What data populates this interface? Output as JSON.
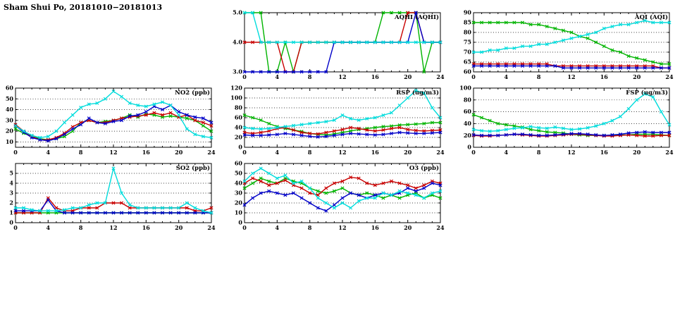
{
  "page_title": "Sham Shui Po, 20181010−20181013",
  "chart_data": [
    {
      "id": "aqhi",
      "title": "AQHI (AQHI)",
      "type": "line",
      "x_unit": "hour",
      "xlim": [
        0,
        24
      ],
      "xticks": [
        0,
        4,
        8,
        12,
        16,
        20,
        24
      ],
      "ylim": [
        3,
        5
      ],
      "yticks": [
        3,
        4,
        5
      ],
      "ytick_labels": [
        "3.0",
        "4.0",
        "5.0"
      ],
      "grid": "horizontal-dotted",
      "marker": "x",
      "legend": "none",
      "series": [
        {
          "name": "green",
          "color": "#00b400",
          "values": [
            5,
            5,
            5,
            3,
            3,
            4,
            3,
            4,
            4,
            4,
            4,
            4,
            4,
            4,
            4,
            4,
            4,
            5,
            5,
            5,
            5,
            5,
            3,
            4,
            4
          ]
        },
        {
          "name": "red",
          "color": "#c80000",
          "values": [
            4,
            4,
            4,
            4,
            4,
            3,
            3,
            4,
            4,
            4,
            4,
            4,
            4,
            4,
            4,
            4,
            4,
            4,
            4,
            4,
            5,
            5,
            4,
            4,
            4
          ]
        },
        {
          "name": "blue",
          "color": "#0000c8",
          "values": [
            3,
            3,
            3,
            3,
            3,
            3,
            3,
            3,
            3,
            3,
            3,
            4,
            4,
            4,
            4,
            4,
            4,
            4,
            4,
            4,
            4,
            5,
            4,
            4,
            4
          ]
        },
        {
          "name": "cyan",
          "color": "#00dcdc",
          "values": [
            5,
            5,
            4,
            4,
            4,
            4,
            4,
            4,
            4,
            4,
            4,
            4,
            4,
            4,
            4,
            4,
            4,
            4,
            4,
            4,
            4,
            4,
            4,
            4,
            4
          ]
        }
      ]
    },
    {
      "id": "aqi",
      "title": "AQI (AQI)",
      "type": "line",
      "x_unit": "hour",
      "xlim": [
        0,
        24
      ],
      "xticks": [
        0,
        4,
        8,
        12,
        16,
        20,
        24
      ],
      "ylim": [
        60,
        90
      ],
      "yticks": [
        60,
        65,
        70,
        75,
        80,
        85,
        90
      ],
      "ytick_labels": [
        "60",
        "65",
        "70",
        "75",
        "80",
        "85",
        "90"
      ],
      "grid": "horizontal-dotted",
      "marker": "x",
      "legend": "none",
      "series": [
        {
          "name": "green",
          "color": "#00b400",
          "values": [
            85,
            85,
            85,
            85,
            85,
            85,
            85,
            84,
            84,
            83,
            82,
            81,
            80,
            78,
            77,
            75,
            73,
            71,
            70,
            68,
            67,
            66,
            65,
            64,
            64
          ]
        },
        {
          "name": "red",
          "color": "#c80000",
          "values": [
            64,
            64,
            64,
            64,
            64,
            64,
            64,
            64,
            64,
            64,
            63,
            63,
            63,
            63,
            63,
            63,
            63,
            63,
            63,
            63,
            63,
            63,
            63,
            62,
            62
          ]
        },
        {
          "name": "blue",
          "color": "#0000c8",
          "values": [
            63,
            63,
            63,
            63,
            63,
            63,
            63,
            63,
            63,
            63,
            63,
            62,
            62,
            62,
            62,
            62,
            62,
            62,
            62,
            62,
            62,
            62,
            62,
            62,
            62
          ]
        },
        {
          "name": "cyan",
          "color": "#00dcdc",
          "values": [
            70,
            70,
            71,
            71,
            72,
            72,
            73,
            73,
            74,
            74,
            75,
            76,
            77,
            78,
            79,
            80,
            82,
            83,
            84,
            84,
            85,
            86,
            85,
            85,
            85
          ]
        }
      ]
    },
    {
      "id": "no2",
      "title": "NO2 (ppb)",
      "type": "line",
      "x_unit": "hour",
      "xlim": [
        0,
        24
      ],
      "xticks": [
        0,
        4,
        8,
        12,
        16,
        20,
        24
      ],
      "ylim": [
        5,
        60
      ],
      "yticks": [
        10,
        20,
        30,
        40,
        50,
        60
      ],
      "ytick_labels": [
        "10",
        "20",
        "30",
        "40",
        "50",
        "60"
      ],
      "grid": "horizontal-dotted",
      "marker": "x",
      "legend": "none",
      "series": [
        {
          "name": "green",
          "color": "#00b400",
          "values": [
            22,
            18,
            15,
            13,
            12,
            13,
            15,
            20,
            28,
            30,
            28,
            29,
            30,
            32,
            35,
            33,
            36,
            35,
            33,
            34,
            33,
            32,
            30,
            25,
            20
          ]
        },
        {
          "name": "red",
          "color": "#c80000",
          "values": [
            26,
            20,
            15,
            12,
            12,
            14,
            18,
            24,
            28,
            30,
            28,
            28,
            30,
            32,
            33,
            34,
            35,
            37,
            35,
            37,
            33,
            35,
            30,
            28,
            25
          ]
        },
        {
          "name": "blue",
          "color": "#0000c8",
          "values": [
            25,
            19,
            14,
            12,
            11,
            13,
            17,
            22,
            26,
            32,
            28,
            27,
            29,
            30,
            34,
            35,
            38,
            43,
            40,
            44,
            38,
            35,
            33,
            32,
            28
          ]
        },
        {
          "name": "cyan",
          "color": "#00dcdc",
          "values": [
            25,
            20,
            16,
            14,
            15,
            20,
            28,
            35,
            42,
            45,
            46,
            50,
            57,
            52,
            46,
            44,
            43,
            45,
            47,
            44,
            35,
            22,
            17,
            15,
            14
          ]
        }
      ]
    },
    {
      "id": "rsp",
      "title": "RSP (ug/m3)",
      "type": "line",
      "x_unit": "hour",
      "xlim": [
        0,
        24
      ],
      "xticks": [
        0,
        4,
        8,
        12,
        16,
        20,
        24
      ],
      "ylim": [
        0,
        120
      ],
      "yticks": [
        0,
        20,
        40,
        60,
        80,
        100,
        120
      ],
      "ytick_labels": [
        "0",
        "20",
        "40",
        "60",
        "80",
        "100",
        "120"
      ],
      "grid": "horizontal-dotted",
      "marker": "x",
      "legend": "none",
      "series": [
        {
          "name": "green",
          "color": "#00b400",
          "values": [
            65,
            60,
            55,
            48,
            42,
            38,
            35,
            32,
            28,
            26,
            25,
            27,
            30,
            33,
            36,
            38,
            40,
            42,
            43,
            45,
            46,
            47,
            48,
            50,
            50
          ]
        },
        {
          "name": "red",
          "color": "#c80000",
          "values": [
            30,
            28,
            30,
            33,
            38,
            40,
            35,
            30,
            28,
            27,
            30,
            33,
            36,
            40,
            38,
            35,
            33,
            35,
            38,
            40,
            36,
            34,
            33,
            34,
            35
          ]
        },
        {
          "name": "blue",
          "color": "#0000c8",
          "values": [
            25,
            24,
            24,
            25,
            26,
            28,
            26,
            24,
            22,
            21,
            22,
            24,
            26,
            28,
            27,
            26,
            25,
            26,
            28,
            30,
            29,
            28,
            28,
            29,
            30
          ]
        },
        {
          "name": "cyan",
          "color": "#00dcdc",
          "values": [
            40,
            38,
            37,
            38,
            40,
            42,
            44,
            46,
            48,
            50,
            52,
            55,
            65,
            58,
            55,
            58,
            60,
            65,
            70,
            85,
            100,
            115,
            110,
            80,
            60
          ]
        }
      ]
    },
    {
      "id": "fsp",
      "title": "FSP (ug/m3)",
      "type": "line",
      "x_unit": "hour",
      "xlim": [
        0,
        24
      ],
      "xticks": [
        0,
        4,
        8,
        12,
        16,
        20,
        24
      ],
      "ylim": [
        0,
        100
      ],
      "yticks": [
        0,
        20,
        40,
        60,
        80,
        100
      ],
      "ytick_labels": [
        "0",
        "20",
        "40",
        "60",
        "80",
        "100"
      ],
      "grid": "horizontal-dotted",
      "marker": "x",
      "legend": "none",
      "series": [
        {
          "name": "green",
          "color": "#00b400",
          "values": [
            55,
            50,
            45,
            40,
            38,
            36,
            34,
            30,
            28,
            26,
            25,
            24,
            22,
            21,
            20,
            20,
            20,
            20,
            21,
            21,
            22,
            22,
            22,
            21,
            20
          ]
        },
        {
          "name": "red",
          "color": "#c80000",
          "values": [
            20,
            19,
            19,
            20,
            21,
            22,
            21,
            20,
            19,
            19,
            20,
            21,
            22,
            22,
            21,
            20,
            19,
            19,
            20,
            21,
            20,
            19,
            19,
            20,
            20
          ]
        },
        {
          "name": "blue",
          "color": "#0000c8",
          "values": [
            21,
            20,
            20,
            20,
            21,
            22,
            22,
            21,
            20,
            20,
            21,
            22,
            23,
            23,
            22,
            21,
            20,
            21,
            22,
            24,
            25,
            26,
            25,
            25,
            25
          ]
        },
        {
          "name": "cyan",
          "color": "#00dcdc",
          "values": [
            30,
            28,
            27,
            28,
            30,
            32,
            33,
            35,
            33,
            32,
            34,
            32,
            30,
            31,
            33,
            36,
            40,
            45,
            52,
            65,
            80,
            90,
            85,
            60,
            38
          ]
        }
      ]
    },
    {
      "id": "so2",
      "title": "SO2 (ppb)",
      "type": "line",
      "x_unit": "hour",
      "xlim": [
        0,
        24
      ],
      "xticks": [
        0,
        4,
        8,
        12,
        16,
        20,
        24
      ],
      "ylim": [
        0,
        6
      ],
      "yticks": [
        0,
        1,
        2,
        3,
        4,
        5
      ],
      "ytick_labels": [
        "0",
        "1",
        "2",
        "3",
        "4",
        "5"
      ],
      "grid": "horizontal-dotted",
      "marker": "x",
      "legend": "none",
      "series": [
        {
          "name": "green",
          "color": "#00b400",
          "values": [
            1,
            1,
            1,
            1,
            1,
            1,
            1,
            1,
            1,
            1,
            1,
            1,
            1,
            1,
            1,
            1,
            1,
            1,
            1,
            1,
            1,
            1,
            1,
            1,
            1
          ]
        },
        {
          "name": "red",
          "color": "#c80000",
          "values": [
            1,
            1,
            1,
            1,
            2.5,
            1.5,
            1.2,
            1.2,
            1.5,
            1.5,
            1.5,
            2,
            2,
            2,
            1.5,
            1.5,
            1.5,
            1.5,
            1.5,
            1.5,
            1.5,
            1.5,
            1.2,
            1.2,
            1.5
          ]
        },
        {
          "name": "blue",
          "color": "#0000c8",
          "values": [
            1.2,
            1.2,
            1.2,
            1.2,
            2.3,
            1.2,
            1,
            1,
            1,
            1,
            1,
            1,
            1,
            1,
            1,
            1,
            1,
            1,
            1,
            1,
            1,
            1,
            1,
            1,
            1
          ]
        },
        {
          "name": "cyan",
          "color": "#00dcdc",
          "values": [
            1.5,
            1.5,
            1.3,
            1.2,
            1.2,
            1.2,
            1.3,
            1.5,
            1.5,
            1.8,
            2,
            2,
            5.5,
            3,
            1.8,
            1.5,
            1.5,
            1.5,
            1.5,
            1.5,
            1.5,
            2,
            1.5,
            1.2,
            1
          ]
        }
      ]
    },
    {
      "id": "o3",
      "title": "O3 (ppb)",
      "type": "line",
      "x_unit": "hour",
      "xlim": [
        0,
        24
      ],
      "xticks": [
        0,
        4,
        8,
        12,
        16,
        20,
        24
      ],
      "ylim": [
        0,
        60
      ],
      "yticks": [
        0,
        10,
        20,
        30,
        40,
        50,
        60
      ],
      "ytick_labels": [
        "0",
        "10",
        "20",
        "30",
        "40",
        "50",
        "60"
      ],
      "grid": "horizontal-dotted",
      "marker": "x",
      "legend": "none",
      "series": [
        {
          "name": "green",
          "color": "#00b400",
          "values": [
            35,
            40,
            45,
            42,
            40,
            45,
            42,
            40,
            35,
            32,
            30,
            32,
            35,
            30,
            28,
            30,
            28,
            25,
            28,
            25,
            28,
            30,
            25,
            28,
            25
          ]
        },
        {
          "name": "red",
          "color": "#c80000",
          "values": [
            40,
            45,
            42,
            38,
            40,
            43,
            38,
            35,
            30,
            28,
            35,
            40,
            42,
            46,
            45,
            40,
            38,
            40,
            42,
            40,
            38,
            35,
            38,
            42,
            40
          ]
        },
        {
          "name": "blue",
          "color": "#0000c8",
          "values": [
            18,
            25,
            30,
            32,
            30,
            28,
            30,
            25,
            20,
            15,
            12,
            18,
            25,
            30,
            28,
            25,
            28,
            30,
            28,
            30,
            35,
            32,
            35,
            40,
            38
          ]
        },
        {
          "name": "cyan",
          "color": "#00dcdc",
          "values": [
            42,
            50,
            55,
            50,
            45,
            48,
            40,
            42,
            35,
            25,
            20,
            15,
            20,
            15,
            22,
            25,
            25,
            30,
            28,
            32,
            30,
            28,
            25,
            30,
            32
          ]
        }
      ]
    }
  ]
}
